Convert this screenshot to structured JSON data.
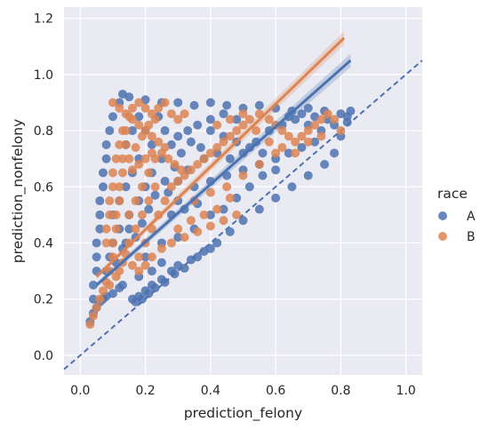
{
  "chart_data": {
    "type": "scatter",
    "title": "",
    "xlabel": "prediction_felony",
    "ylabel": "prediction_nonfelony",
    "xlim": [
      -0.05,
      1.05
    ],
    "ylim": [
      -0.07,
      1.24
    ],
    "x_ticks": [
      "0.0",
      "0.2",
      "0.4",
      "0.6",
      "0.8",
      "1.0"
    ],
    "y_ticks": [
      "0.0",
      "0.2",
      "0.4",
      "0.6",
      "0.8",
      "1.0",
      "1.2"
    ],
    "grid": true,
    "background": "#eaeaf2",
    "legend": {
      "title": "race",
      "placement": "right",
      "entries": [
        {
          "label": "A",
          "color": "#4c72b0"
        },
        {
          "label": "B",
          "color": "#dd8452"
        }
      ]
    },
    "series": [
      {
        "name": "A",
        "color": "#4c72b0",
        "regression_line": {
          "x": [
            0.05,
            0.83
          ],
          "y": [
            0.25,
            1.05
          ]
        },
        "points": [
          [
            0.03,
            0.12
          ],
          [
            0.04,
            0.15
          ],
          [
            0.05,
            0.17
          ],
          [
            0.06,
            0.19
          ],
          [
            0.07,
            0.2
          ],
          [
            0.08,
            0.21
          ],
          [
            0.1,
            0.22
          ],
          [
            0.12,
            0.24
          ],
          [
            0.13,
            0.25
          ],
          [
            0.16,
            0.2
          ],
          [
            0.18,
            0.21
          ],
          [
            0.2,
            0.23
          ],
          [
            0.22,
            0.25
          ],
          [
            0.25,
            0.27
          ],
          [
            0.28,
            0.3
          ],
          [
            0.3,
            0.32
          ],
          [
            0.34,
            0.34
          ],
          [
            0.38,
            0.37
          ],
          [
            0.42,
            0.4
          ],
          [
            0.46,
            0.44
          ],
          [
            0.5,
            0.48
          ],
          [
            0.55,
            0.52
          ],
          [
            0.6,
            0.56
          ],
          [
            0.65,
            0.6
          ],
          [
            0.7,
            0.64
          ],
          [
            0.75,
            0.68
          ],
          [
            0.78,
            0.72
          ],
          [
            0.8,
            0.78
          ],
          [
            0.82,
            0.83
          ],
          [
            0.83,
            0.87
          ],
          [
            0.82,
            0.85
          ],
          [
            0.8,
            0.86
          ],
          [
            0.75,
            0.87
          ],
          [
            0.7,
            0.88
          ],
          [
            0.65,
            0.87
          ],
          [
            0.6,
            0.88
          ],
          [
            0.55,
            0.89
          ],
          [
            0.5,
            0.88
          ],
          [
            0.45,
            0.89
          ],
          [
            0.4,
            0.9
          ],
          [
            0.35,
            0.89
          ],
          [
            0.3,
            0.9
          ],
          [
            0.25,
            0.9
          ],
          [
            0.2,
            0.91
          ],
          [
            0.15,
            0.92
          ],
          [
            0.13,
            0.93
          ],
          [
            0.12,
            0.9
          ],
          [
            0.1,
            0.85
          ],
          [
            0.09,
            0.8
          ],
          [
            0.08,
            0.75
          ],
          [
            0.08,
            0.7
          ],
          [
            0.07,
            0.65
          ],
          [
            0.07,
            0.6
          ],
          [
            0.06,
            0.55
          ],
          [
            0.06,
            0.5
          ],
          [
            0.06,
            0.45
          ],
          [
            0.05,
            0.4
          ],
          [
            0.05,
            0.35
          ],
          [
            0.05,
            0.3
          ],
          [
            0.04,
            0.25
          ],
          [
            0.04,
            0.2
          ],
          [
            0.15,
            0.5
          ],
          [
            0.18,
            0.55
          ],
          [
            0.2,
            0.6
          ],
          [
            0.22,
            0.65
          ],
          [
            0.25,
            0.7
          ],
          [
            0.28,
            0.75
          ],
          [
            0.3,
            0.78
          ],
          [
            0.33,
            0.8
          ],
          [
            0.36,
            0.82
          ],
          [
            0.4,
            0.8
          ],
          [
            0.44,
            0.78
          ],
          [
            0.48,
            0.76
          ],
          [
            0.52,
            0.74
          ],
          [
            0.56,
            0.72
          ],
          [
            0.6,
            0.7
          ],
          [
            0.64,
            0.72
          ],
          [
            0.68,
            0.74
          ],
          [
            0.72,
            0.76
          ],
          [
            0.3,
            0.55
          ],
          [
            0.35,
            0.6
          ],
          [
            0.4,
            0.62
          ],
          [
            0.45,
            0.64
          ],
          [
            0.5,
            0.66
          ],
          [
            0.55,
            0.68
          ],
          [
            0.28,
            0.5
          ],
          [
            0.32,
            0.52
          ],
          [
            0.36,
            0.54
          ],
          [
            0.4,
            0.5
          ],
          [
            0.44,
            0.52
          ],
          [
            0.48,
            0.56
          ],
          [
            0.52,
            0.6
          ],
          [
            0.56,
            0.64
          ],
          [
            0.6,
            0.66
          ],
          [
            0.25,
            0.4
          ],
          [
            0.3,
            0.42
          ],
          [
            0.35,
            0.45
          ],
          [
            0.2,
            0.35
          ],
          [
            0.22,
            0.3
          ],
          [
            0.25,
            0.33
          ],
          [
            0.18,
            0.28
          ],
          [
            0.14,
            0.4
          ],
          [
            0.12,
            0.45
          ],
          [
            0.1,
            0.5
          ],
          [
            0.12,
            0.55
          ],
          [
            0.14,
            0.6
          ],
          [
            0.16,
            0.65
          ],
          [
            0.18,
            0.7
          ],
          [
            0.14,
            0.75
          ],
          [
            0.16,
            0.8
          ],
          [
            0.18,
            0.85
          ],
          [
            0.2,
            0.8
          ],
          [
            0.22,
            0.75
          ],
          [
            0.24,
            0.85
          ],
          [
            0.26,
            0.8
          ],
          [
            0.38,
            0.7
          ],
          [
            0.42,
            0.72
          ],
          [
            0.46,
            0.7
          ],
          [
            0.5,
            0.72
          ],
          [
            0.54,
            0.76
          ],
          [
            0.58,
            0.8
          ],
          [
            0.62,
            0.82
          ],
          [
            0.66,
            0.84
          ],
          [
            0.7,
            0.82
          ],
          [
            0.74,
            0.8
          ],
          [
            0.78,
            0.82
          ],
          [
            0.76,
            0.84
          ],
          [
            0.72,
            0.85
          ],
          [
            0.68,
            0.86
          ],
          [
            0.64,
            0.85
          ],
          [
            0.48,
            0.84
          ],
          [
            0.44,
            0.86
          ],
          [
            0.4,
            0.84
          ],
          [
            0.17,
            0.19
          ],
          [
            0.19,
            0.2
          ],
          [
            0.21,
            0.22
          ],
          [
            0.23,
            0.24
          ],
          [
            0.26,
            0.26
          ],
          [
            0.29,
            0.29
          ],
          [
            0.32,
            0.31
          ],
          [
            0.36,
            0.35
          ],
          [
            0.4,
            0.38
          ],
          [
            0.08,
            0.3
          ],
          [
            0.09,
            0.35
          ],
          [
            0.1,
            0.4
          ],
          [
            0.11,
            0.33
          ],
          [
            0.13,
            0.38
          ],
          [
            0.15,
            0.45
          ],
          [
            0.17,
            0.42
          ],
          [
            0.19,
            0.47
          ],
          [
            0.21,
            0.52
          ],
          [
            0.23,
            0.57
          ],
          [
            0.26,
            0.62
          ],
          [
            0.29,
            0.67
          ],
          [
            0.31,
            0.72
          ],
          [
            0.34,
            0.76
          ],
          [
            0.37,
            0.74
          ],
          [
            0.33,
            0.66
          ],
          [
            0.3,
            0.62
          ],
          [
            0.27,
            0.58
          ]
        ]
      },
      {
        "name": "B",
        "color": "#dd8452",
        "regression_line": {
          "x": [
            0.05,
            0.81
          ],
          "y": [
            0.28,
            1.13
          ]
        },
        "points": [
          [
            0.03,
            0.11
          ],
          [
            0.04,
            0.14
          ],
          [
            0.05,
            0.17
          ],
          [
            0.06,
            0.2
          ],
          [
            0.07,
            0.23
          ],
          [
            0.08,
            0.26
          ],
          [
            0.09,
            0.3
          ],
          [
            0.1,
            0.35
          ],
          [
            0.1,
            0.4
          ],
          [
            0.11,
            0.45
          ],
          [
            0.11,
            0.5
          ],
          [
            0.12,
            0.55
          ],
          [
            0.12,
            0.6
          ],
          [
            0.13,
            0.65
          ],
          [
            0.13,
            0.7
          ],
          [
            0.14,
            0.75
          ],
          [
            0.14,
            0.8
          ],
          [
            0.15,
            0.85
          ],
          [
            0.16,
            0.88
          ],
          [
            0.18,
            0.9
          ],
          [
            0.2,
            0.88
          ],
          [
            0.22,
            0.86
          ],
          [
            0.24,
            0.88
          ],
          [
            0.26,
            0.9
          ],
          [
            0.28,
            0.86
          ],
          [
            0.3,
            0.84
          ],
          [
            0.32,
            0.86
          ],
          [
            0.1,
            0.9
          ],
          [
            0.12,
            0.88
          ],
          [
            0.14,
            0.86
          ],
          [
            0.16,
            0.84
          ],
          [
            0.18,
            0.82
          ],
          [
            0.2,
            0.8
          ],
          [
            0.22,
            0.78
          ],
          [
            0.24,
            0.76
          ],
          [
            0.26,
            0.74
          ],
          [
            0.15,
            0.5
          ],
          [
            0.17,
            0.55
          ],
          [
            0.19,
            0.6
          ],
          [
            0.21,
            0.65
          ],
          [
            0.23,
            0.7
          ],
          [
            0.25,
            0.72
          ],
          [
            0.27,
            0.7
          ],
          [
            0.29,
            0.68
          ],
          [
            0.31,
            0.66
          ],
          [
            0.15,
            0.4
          ],
          [
            0.17,
            0.45
          ],
          [
            0.19,
            0.5
          ],
          [
            0.21,
            0.55
          ],
          [
            0.23,
            0.6
          ],
          [
            0.18,
            0.35
          ],
          [
            0.2,
            0.4
          ],
          [
            0.22,
            0.45
          ],
          [
            0.24,
            0.5
          ],
          [
            0.26,
            0.55
          ],
          [
            0.28,
            0.6
          ],
          [
            0.3,
            0.62
          ],
          [
            0.32,
            0.64
          ],
          [
            0.34,
            0.66
          ],
          [
            0.36,
            0.68
          ],
          [
            0.38,
            0.7
          ],
          [
            0.4,
            0.72
          ],
          [
            0.42,
            0.74
          ],
          [
            0.44,
            0.76
          ],
          [
            0.46,
            0.78
          ],
          [
            0.48,
            0.8
          ],
          [
            0.5,
            0.82
          ],
          [
            0.52,
            0.84
          ],
          [
            0.55,
            0.86
          ],
          [
            0.58,
            0.84
          ],
          [
            0.6,
            0.82
          ],
          [
            0.62,
            0.8
          ],
          [
            0.64,
            0.78
          ],
          [
            0.66,
            0.76
          ],
          [
            0.68,
            0.78
          ],
          [
            0.7,
            0.8
          ],
          [
            0.72,
            0.82
          ],
          [
            0.74,
            0.84
          ],
          [
            0.76,
            0.86
          ],
          [
            0.78,
            0.84
          ],
          [
            0.8,
            0.8
          ],
          [
            0.35,
            0.55
          ],
          [
            0.4,
            0.58
          ],
          [
            0.45,
            0.6
          ],
          [
            0.5,
            0.64
          ],
          [
            0.55,
            0.68
          ],
          [
            0.6,
            0.72
          ],
          [
            0.38,
            0.5
          ],
          [
            0.42,
            0.52
          ],
          [
            0.46,
            0.56
          ],
          [
            0.3,
            0.45
          ],
          [
            0.32,
            0.42
          ],
          [
            0.28,
            0.4
          ],
          [
            0.25,
            0.38
          ],
          [
            0.34,
            0.48
          ],
          [
            0.36,
            0.44
          ],
          [
            0.4,
            0.46
          ],
          [
            0.44,
            0.48
          ],
          [
            0.48,
            0.5
          ],
          [
            0.12,
            0.3
          ],
          [
            0.13,
            0.33
          ],
          [
            0.14,
            0.36
          ],
          [
            0.16,
            0.32
          ],
          [
            0.18,
            0.3
          ],
          [
            0.2,
            0.32
          ],
          [
            0.22,
            0.35
          ],
          [
            0.09,
            0.25
          ],
          [
            0.11,
            0.28
          ],
          [
            0.2,
            0.7
          ],
          [
            0.22,
            0.72
          ],
          [
            0.18,
            0.68
          ],
          [
            0.16,
            0.66
          ],
          [
            0.19,
            0.78
          ],
          [
            0.21,
            0.82
          ],
          [
            0.23,
            0.84
          ],
          [
            0.17,
            0.74
          ],
          [
            0.15,
            0.7
          ],
          [
            0.42,
            0.82
          ],
          [
            0.46,
            0.84
          ],
          [
            0.5,
            0.86
          ],
          [
            0.54,
            0.8
          ],
          [
            0.58,
            0.76
          ],
          [
            0.62,
            0.74
          ],
          [
            0.66,
            0.72
          ],
          [
            0.7,
            0.76
          ],
          [
            0.74,
            0.78
          ],
          [
            0.12,
            0.75
          ],
          [
            0.13,
            0.8
          ],
          [
            0.11,
            0.7
          ],
          [
            0.1,
            0.65
          ],
          [
            0.1,
            0.6
          ],
          [
            0.09,
            0.55
          ],
          [
            0.09,
            0.5
          ],
          [
            0.08,
            0.45
          ],
          [
            0.08,
            0.4
          ]
        ]
      }
    ]
  }
}
